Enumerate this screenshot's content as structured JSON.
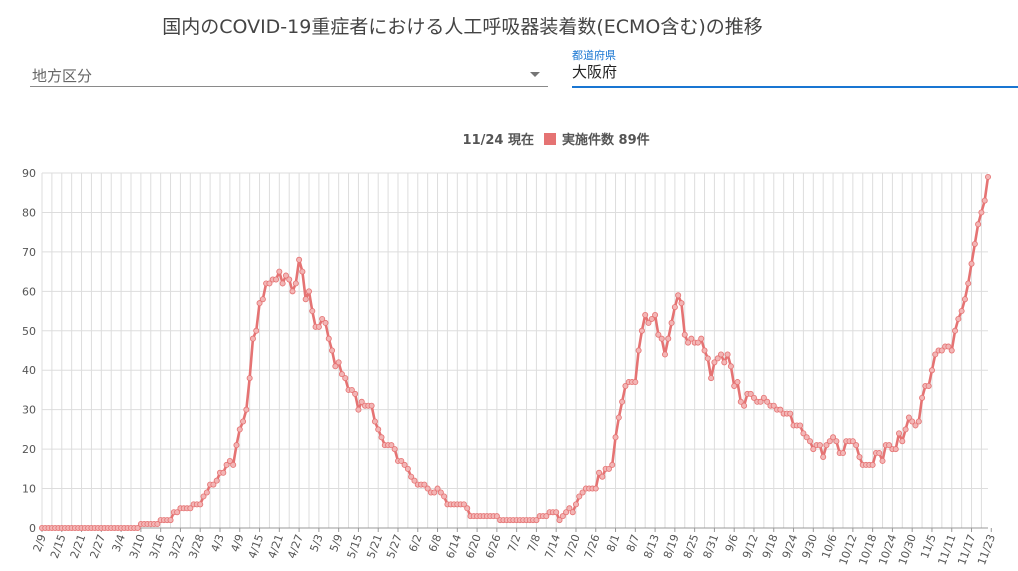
{
  "title": "国内のCOVID-19重症者における人工呼吸器装着数(ECMO含む)の推移",
  "filters": {
    "region_placeholder": "地方区分",
    "prefecture_label": "都道府県",
    "prefecture_value": "大阪府"
  },
  "colors": {
    "series": "#e57373",
    "accent": "#1976d2",
    "grid": "#dddddd"
  },
  "chart_data": {
    "type": "line",
    "legend": {
      "date_label": "11/24 現在",
      "series_label": "実施件数 89件"
    },
    "x_start": "2/9",
    "tick_labels": [
      "2/9",
      "2/15",
      "2/21",
      "2/27",
      "3/4",
      "3/10",
      "3/16",
      "3/22",
      "3/28",
      "4/3",
      "4/9",
      "4/15",
      "4/21",
      "4/27",
      "5/3",
      "5/9",
      "5/15",
      "5/21",
      "5/27",
      "6/2",
      "6/8",
      "6/14",
      "6/20",
      "6/26",
      "7/2",
      "7/8",
      "7/14",
      "7/20",
      "7/26",
      "8/1",
      "8/7",
      "8/13",
      "8/19",
      "8/25",
      "8/31",
      "9/6",
      "9/12",
      "9/18",
      "9/24",
      "9/30",
      "10/6",
      "10/12",
      "10/18",
      "10/24",
      "10/30",
      "11/5",
      "11/11",
      "11/17",
      "11/23"
    ],
    "yticks": [
      0,
      10,
      20,
      30,
      40,
      50,
      60,
      70,
      80,
      90
    ],
    "ylim": [
      0,
      90
    ],
    "series": [
      {
        "name": "実施件数",
        "values": [
          0,
          0,
          0,
          0,
          0,
          0,
          0,
          0,
          0,
          0,
          0,
          0,
          0,
          0,
          0,
          0,
          0,
          0,
          0,
          0,
          0,
          0,
          0,
          0,
          0,
          0,
          0,
          0,
          0,
          0,
          1,
          1,
          1,
          1,
          1,
          1,
          2,
          2,
          2,
          2,
          4,
          4,
          5,
          5,
          5,
          5,
          6,
          6,
          6,
          8,
          9,
          11,
          11,
          12,
          14,
          14,
          16,
          17,
          16,
          21,
          25,
          27,
          30,
          38,
          48,
          50,
          57,
          58,
          62,
          62,
          63,
          63,
          65,
          62,
          64,
          63,
          60,
          62,
          68,
          65,
          58,
          60,
          55,
          51,
          51,
          53,
          52,
          48,
          45,
          41,
          42,
          39,
          38,
          35,
          35,
          34,
          30,
          32,
          31,
          31,
          31,
          27,
          25,
          23,
          21,
          21,
          21,
          20,
          17,
          17,
          16,
          15,
          13,
          12,
          11,
          11,
          11,
          10,
          9,
          9,
          10,
          9,
          8,
          6,
          6,
          6,
          6,
          6,
          6,
          5,
          3,
          3,
          3,
          3,
          3,
          3,
          3,
          3,
          3,
          2,
          2,
          2,
          2,
          2,
          2,
          2,
          2,
          2,
          2,
          2,
          2,
          3,
          3,
          3,
          4,
          4,
          4,
          2,
          3,
          4,
          5,
          4,
          6,
          8,
          9,
          10,
          10,
          10,
          10,
          14,
          13,
          15,
          15,
          16,
          23,
          28,
          32,
          36,
          37,
          37,
          37,
          45,
          50,
          54,
          52,
          53,
          54,
          49,
          48,
          44,
          48,
          52,
          56,
          59,
          57,
          49,
          47,
          48,
          47,
          47,
          48,
          45,
          43,
          38,
          42,
          43,
          44,
          42,
          44,
          41,
          36,
          37,
          32,
          31,
          34,
          34,
          33,
          32,
          32,
          33,
          32,
          31,
          31,
          30,
          30,
          29,
          29,
          29,
          26,
          26,
          26,
          24,
          23,
          22,
          20,
          21,
          21,
          18,
          21,
          22,
          23,
          22,
          19,
          19,
          22,
          22,
          22,
          21,
          18,
          16,
          16,
          16,
          16,
          19,
          19,
          17,
          21,
          21,
          20,
          20,
          24,
          22,
          25,
          28,
          27,
          26,
          27,
          33,
          36,
          36,
          40,
          44,
          45,
          45,
          46,
          46,
          45,
          50,
          53,
          55,
          58,
          62,
          67,
          72,
          77,
          80,
          83,
          89
        ]
      }
    ],
    "grid": true
  }
}
